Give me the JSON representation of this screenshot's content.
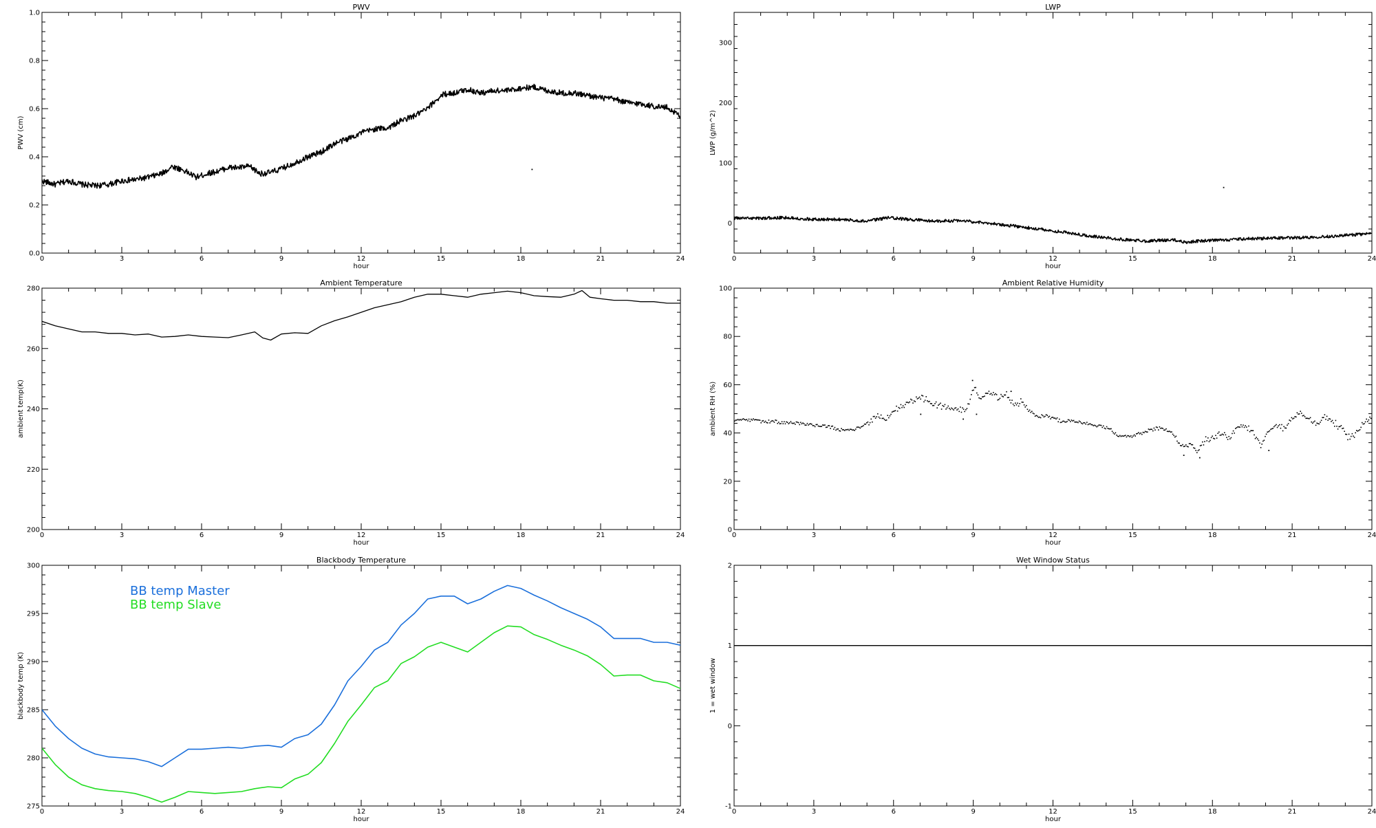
{
  "chart_data": [
    {
      "id": "pwv",
      "type": "line",
      "title": "PWV",
      "xlabel": "hour",
      "ylabel": "PWV (cm)",
      "xlim": [
        0,
        24
      ],
      "ylim": [
        0.0,
        1.0
      ],
      "xticks": [
        0,
        3,
        6,
        9,
        12,
        15,
        18,
        21,
        24
      ],
      "xtick_labels": [
        "0",
        "3",
        "6",
        "9",
        "12",
        "15",
        "18",
        "21",
        "24"
      ],
      "yticks": [
        0.0,
        0.2,
        0.4,
        0.6,
        0.8,
        1.0
      ],
      "ytick_labels": [
        "0.0",
        "0.2",
        "0.4",
        "0.6",
        "0.8",
        "1.0"
      ],
      "noise": 0.012,
      "series": [
        {
          "color": "#000000",
          "x": [
            0,
            0.5,
            1.0,
            1.5,
            2.0,
            2.5,
            3.0,
            3.5,
            4.0,
            4.5,
            4.9,
            5.3,
            5.8,
            6.2,
            6.6,
            7.0,
            7.4,
            7.8,
            8.2,
            8.6,
            9.0,
            9.5,
            10.0,
            10.5,
            11.0,
            11.5,
            12.0,
            12.5,
            13.0,
            13.5,
            14.0,
            14.5,
            14.8,
            15.1,
            15.5,
            16.0,
            16.5,
            17.0,
            17.5,
            18.0,
            18.5,
            19.0,
            19.5,
            20.0,
            20.5,
            21.0,
            21.5,
            22.0,
            22.5,
            23.0,
            23.5,
            24.0
          ],
          "y": [
            0.3,
            0.285,
            0.3,
            0.285,
            0.28,
            0.285,
            0.3,
            0.305,
            0.315,
            0.33,
            0.36,
            0.345,
            0.315,
            0.33,
            0.34,
            0.355,
            0.355,
            0.36,
            0.33,
            0.335,
            0.35,
            0.375,
            0.4,
            0.42,
            0.455,
            0.475,
            0.5,
            0.515,
            0.52,
            0.55,
            0.57,
            0.6,
            0.635,
            0.66,
            0.665,
            0.68,
            0.665,
            0.675,
            0.675,
            0.685,
            0.69,
            0.675,
            0.665,
            0.665,
            0.655,
            0.645,
            0.64,
            0.625,
            0.62,
            0.61,
            0.605,
            0.57
          ]
        }
      ],
      "points": [
        [
          18.4,
          0.35
        ]
      ]
    },
    {
      "id": "lwp",
      "type": "line",
      "title": "LWP",
      "xlabel": "hour",
      "ylabel": "LWP (g/m^2)",
      "xlim": [
        0,
        24
      ],
      "ylim": [
        -50,
        350
      ],
      "xticks": [
        0,
        3,
        6,
        9,
        12,
        15,
        18,
        21,
        24
      ],
      "xtick_labels": [
        "0",
        "3",
        "6",
        "9",
        "12",
        "15",
        "18",
        "21",
        "24"
      ],
      "yticks": [
        0,
        100,
        200,
        300
      ],
      "ytick_labels": [
        "0",
        "100",
        "200",
        "300"
      ],
      "noise": 2.5,
      "series": [
        {
          "color": "#000000",
          "x": [
            0,
            1,
            2,
            3,
            4,
            5,
            5.8,
            6.5,
            7.5,
            8.5,
            9.5,
            10.5,
            11.5,
            12.5,
            13.5,
            14.5,
            15.5,
            16.5,
            17.0,
            17.5,
            18.5,
            19.5,
            20.5,
            21.5,
            22.5,
            23.5,
            24.0
          ],
          "y": [
            8,
            8,
            9,
            6,
            6,
            3,
            9,
            6,
            3,
            4,
            0,
            -5,
            -10,
            -16,
            -22,
            -27,
            -30,
            -28,
            -32,
            -30,
            -28,
            -26,
            -25,
            -24,
            -22,
            -19,
            -18
          ]
        }
      ],
      "points": [
        [
          18.4,
          60
        ]
      ]
    },
    {
      "id": "ambient-temp",
      "type": "line",
      "title": "Ambient Temperature",
      "xlabel": "hour",
      "ylabel": "ambient temp(K)",
      "xlim": [
        0,
        24
      ],
      "ylim": [
        200,
        280
      ],
      "xticks": [
        0,
        3,
        6,
        9,
        12,
        15,
        18,
        21,
        24
      ],
      "xtick_labels": [
        "0",
        "3",
        "6",
        "9",
        "12",
        "15",
        "18",
        "21",
        "24"
      ],
      "yticks": [
        200,
        220,
        240,
        260,
        280
      ],
      "ytick_labels": [
        "200",
        "220",
        "240",
        "260",
        "280"
      ],
      "noise": 0,
      "series": [
        {
          "color": "#000000",
          "x": [
            0,
            0.5,
            1.0,
            1.5,
            2.0,
            2.5,
            3.0,
            3.5,
            4.0,
            4.5,
            5.0,
            5.5,
            6.0,
            6.5,
            7.0,
            7.5,
            8.0,
            8.3,
            8.6,
            9.0,
            9.5,
            10.0,
            10.5,
            11.0,
            11.5,
            12.0,
            12.5,
            13.0,
            13.5,
            14.0,
            14.5,
            15.0,
            15.5,
            16.0,
            16.5,
            17.0,
            17.5,
            18.0,
            18.5,
            19.0,
            19.5,
            20.0,
            20.3,
            20.6,
            21.0,
            21.5,
            22.0,
            22.5,
            23.0,
            23.5,
            24.0
          ],
          "y": [
            269,
            267.5,
            266.5,
            265.5,
            265.5,
            265,
            265,
            264.5,
            264.8,
            263.8,
            264,
            264.5,
            264,
            263.8,
            263.6,
            264.5,
            265.5,
            263.5,
            262.8,
            264.8,
            265.2,
            265,
            267.5,
            269.2,
            270.5,
            272,
            273.5,
            274.5,
            275.5,
            277,
            278,
            278,
            277.5,
            277,
            278,
            278.5,
            279,
            278.5,
            277.5,
            277.2,
            277,
            278,
            279.2,
            277,
            276.5,
            276,
            276,
            275.5,
            275.5,
            275,
            275
          ]
        }
      ]
    },
    {
      "id": "ambient-rh",
      "type": "scatter",
      "title": "Ambient Relative Humidity",
      "xlabel": "hour",
      "ylabel": "ambient RH (%)",
      "xlim": [
        0,
        24
      ],
      "ylim": [
        0,
        100
      ],
      "xticks": [
        0,
        3,
        6,
        9,
        12,
        15,
        18,
        21,
        24
      ],
      "xtick_labels": [
        "0",
        "3",
        "6",
        "9",
        "12",
        "15",
        "18",
        "21",
        "24"
      ],
      "yticks": [
        0,
        20,
        40,
        60,
        80,
        100
      ],
      "ytick_labels": [
        "0",
        "20",
        "40",
        "60",
        "80",
        "100"
      ],
      "series": [
        {
          "color": "#000000",
          "x": [
            0,
            0.3,
            0.6,
            0.9,
            1.2,
            1.5,
            1.8,
            2.1,
            2.4,
            2.7,
            3.0,
            3.3,
            3.6,
            3.9,
            4.2,
            4.5,
            4.8,
            5.1,
            5.4,
            5.7,
            6.0,
            6.3,
            6.6,
            6.9,
            7.2,
            7.5,
            7.8,
            8.1,
            8.4,
            8.7,
            9.0,
            9.3,
            9.6,
            9.9,
            10.2,
            10.5,
            10.8,
            11.1,
            11.4,
            11.7,
            12.0,
            12.3,
            12.6,
            12.9,
            13.2,
            13.5,
            13.8,
            14.1,
            14.4,
            14.7,
            15.0,
            15.3,
            15.6,
            15.9,
            16.2,
            16.5,
            16.8,
            17.1,
            17.4,
            17.7,
            18.0,
            18.3,
            18.6,
            18.9,
            19.2,
            19.5,
            19.8,
            20.1,
            20.4,
            20.7,
            21.0,
            21.3,
            21.6,
            21.9,
            22.2,
            22.5,
            22.8,
            23.1,
            23.4,
            23.7,
            24.0
          ],
          "y": [
            45,
            45.5,
            45.3,
            45,
            45,
            44.8,
            44.5,
            44.3,
            44,
            43.5,
            43.2,
            43,
            42.5,
            41.5,
            41,
            41.5,
            43,
            45,
            47,
            46,
            49,
            51,
            53,
            55,
            54,
            52,
            51,
            50.5,
            50,
            49.5,
            58,
            55,
            56,
            55,
            56,
            52,
            53,
            49,
            47,
            47,
            46,
            45,
            45,
            44.5,
            44,
            43,
            43,
            42,
            39,
            38.5,
            39,
            40,
            41,
            42,
            41.5,
            40,
            35,
            36,
            33,
            37,
            38,
            40,
            38,
            42,
            43,
            41,
            35,
            41,
            43,
            42,
            47,
            48.5,
            46,
            44,
            47,
            45,
            42,
            38,
            40,
            45,
            47
          ]
        }
      ],
      "scatter_extra": [
        [
          8.95,
          62
        ],
        [
          9.1,
          48
        ],
        [
          16.9,
          31
        ],
        [
          17.5,
          30
        ],
        [
          20.1,
          33
        ],
        [
          10.4,
          57.5
        ],
        [
          7.0,
          48
        ],
        [
          8.6,
          46
        ]
      ]
    },
    {
      "id": "blackbody-temp",
      "type": "line",
      "title": "Blackbody Temperature",
      "xlabel": "hour",
      "ylabel": "blackbody temp (K)",
      "xlim": [
        0,
        24
      ],
      "ylim": [
        275,
        300
      ],
      "xticks": [
        0,
        3,
        6,
        9,
        12,
        15,
        18,
        21,
        24
      ],
      "xtick_labels": [
        "0",
        "3",
        "6",
        "9",
        "12",
        "15",
        "18",
        "21",
        "24"
      ],
      "yticks": [
        275,
        280,
        285,
        290,
        295,
        300
      ],
      "ytick_labels": [
        "275",
        "280",
        "285",
        "290",
        "295",
        "300"
      ],
      "noise": 0,
      "legend": [
        {
          "label": "BB temp Master",
          "color": "#1a6fdb"
        },
        {
          "label": "BB temp Slave",
          "color": "#22dd22"
        }
      ],
      "series": [
        {
          "name": "BB temp Master",
          "color": "#1a6fdb",
          "x": [
            0,
            0.5,
            1.0,
            1.5,
            2.0,
            2.5,
            3.0,
            3.5,
            4.0,
            4.5,
            5.0,
            5.5,
            6.0,
            6.5,
            7.0,
            7.5,
            8.0,
            8.5,
            9.0,
            9.5,
            10.0,
            10.5,
            11.0,
            11.5,
            12.0,
            12.5,
            13.0,
            13.5,
            14.0,
            14.5,
            15.0,
            15.5,
            16.0,
            16.5,
            17.0,
            17.5,
            18.0,
            18.5,
            19.0,
            19.5,
            20.0,
            20.5,
            21.0,
            21.5,
            22.0,
            22.5,
            23.0,
            23.5,
            24.0
          ],
          "y": [
            285,
            283.3,
            282.0,
            281.0,
            280.4,
            280.1,
            280.0,
            279.9,
            279.6,
            279.1,
            280.0,
            280.9,
            280.9,
            281.0,
            281.1,
            281.0,
            281.2,
            281.3,
            281.1,
            282.0,
            282.4,
            283.5,
            285.5,
            288.0,
            289.5,
            291.2,
            292.0,
            293.8,
            295.0,
            296.5,
            296.8,
            296.8,
            296.0,
            296.5,
            297.3,
            297.9,
            297.6,
            296.9,
            296.3,
            295.6,
            295.0,
            294.4,
            293.6,
            292.4,
            292.4,
            292.4,
            292.0,
            292.0,
            291.7
          ]
        },
        {
          "name": "BB temp Slave",
          "color": "#22dd22",
          "x": [
            0,
            0.5,
            1.0,
            1.5,
            2.0,
            2.5,
            3.0,
            3.5,
            4.0,
            4.5,
            5.0,
            5.5,
            6.0,
            6.5,
            7.0,
            7.5,
            8.0,
            8.5,
            9.0,
            9.5,
            10.0,
            10.5,
            11.0,
            11.5,
            12.0,
            12.5,
            13.0,
            13.5,
            14.0,
            14.5,
            15.0,
            15.5,
            16.0,
            16.5,
            17.0,
            17.5,
            18.0,
            18.5,
            19.0,
            19.5,
            20.0,
            20.5,
            21.0,
            21.5,
            22.0,
            22.5,
            23.0,
            23.5,
            24.0
          ],
          "y": [
            281,
            279.3,
            278.0,
            277.2,
            276.8,
            276.6,
            276.5,
            276.3,
            275.9,
            275.4,
            275.9,
            276.5,
            276.4,
            276.3,
            276.4,
            276.5,
            276.8,
            277.0,
            276.9,
            277.8,
            278.3,
            279.5,
            281.5,
            283.8,
            285.5,
            287.3,
            288.0,
            289.8,
            290.5,
            291.5,
            292.0,
            291.5,
            291.0,
            292.0,
            293.0,
            293.7,
            293.6,
            292.8,
            292.3,
            291.7,
            291.2,
            290.6,
            289.7,
            288.5,
            288.6,
            288.6,
            288.0,
            287.8,
            287.2
          ]
        }
      ]
    },
    {
      "id": "wet-window",
      "type": "line",
      "title": "Wet Window Status",
      "xlabel": "hour",
      "ylabel": "1 = wet window",
      "xlim": [
        0,
        24
      ],
      "ylim": [
        -1,
        2
      ],
      "xticks": [
        0,
        3,
        6,
        9,
        12,
        15,
        18,
        21,
        24
      ],
      "xtick_labels": [
        "0",
        "3",
        "6",
        "9",
        "12",
        "15",
        "18",
        "21",
        "24"
      ],
      "yticks": [
        -1,
        0,
        1,
        2
      ],
      "ytick_labels": [
        "-1",
        "0",
        "1",
        "2"
      ],
      "noise": 0,
      "series": [
        {
          "color": "#000000",
          "x": [
            0,
            24
          ],
          "y": [
            1,
            1
          ]
        }
      ]
    }
  ]
}
